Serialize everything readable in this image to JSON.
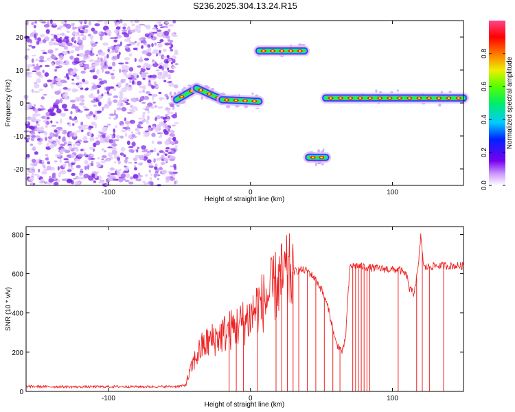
{
  "chart_data": [
    {
      "type": "heatmap",
      "title": "S236.2025.304.13.24.R15",
      "xlabel": "Height of straight line (km)",
      "ylabel": "Frequency (Hz)",
      "xlim": [
        -158,
        150
      ],
      "ylim": [
        -25,
        25
      ],
      "xticks": [
        -100,
        0,
        100
      ],
      "xtick_labels": [
        "-100",
        "0",
        "100"
      ],
      "yticks": [
        -20,
        -10,
        0,
        10,
        20
      ],
      "ytick_labels": [
        "-20",
        "-10",
        "0",
        "10",
        "20"
      ],
      "noise_region_x": [
        -158,
        -52
      ],
      "tracks": [
        {
          "x_start": -52,
          "x_end": -38,
          "f_start": 1,
          "f_end": 4.5
        },
        {
          "x_start": -38,
          "x_end": -20,
          "f_start": 4.5,
          "f_end": 1
        },
        {
          "x_start": -20,
          "x_end": 6,
          "f_start": 1,
          "f_end": 0.5
        },
        {
          "x_start": 6,
          "x_end": 38,
          "f_start": 15.8,
          "f_end": 15.8
        },
        {
          "x_start": 41,
          "x_end": 53,
          "f_start": -16.5,
          "f_end": -16.5
        },
        {
          "x_start": 53,
          "x_end": 150,
          "f_start": 1.5,
          "f_end": 1.5
        }
      ],
      "colorbar": {
        "label": "Normalized spectral amplitude",
        "ticks": [
          0.0,
          0.2,
          0.4,
          0.6,
          0.8
        ],
        "tick_labels": [
          "0.0",
          "0.2",
          "0.4",
          "0.6",
          "0.8"
        ],
        "range": [
          0,
          1
        ]
      }
    },
    {
      "type": "line",
      "xlabel": "Height of straight line (km)",
      "ylabel": "SNR (10 * v/v)",
      "xlim": [
        -158,
        150
      ],
      "ylim": [
        0,
        840
      ],
      "xticks": [
        -100,
        0,
        100
      ],
      "xtick_labels": [
        "-100",
        "0",
        "100"
      ],
      "yticks": [
        0,
        200,
        400,
        600,
        800
      ],
      "ytick_labels": [
        "0",
        "200",
        "400",
        "600",
        "800"
      ],
      "color": "#ee2222",
      "series": [
        {
          "name": "SNR",
          "x": [
            -158,
            -140,
            -120,
            -100,
            -80,
            -60,
            -52,
            -46,
            -40,
            -35,
            -30,
            -25,
            -20,
            -15,
            -10,
            -5,
            0,
            5,
            10,
            15,
            20,
            25,
            30,
            35,
            40,
            45,
            50,
            55,
            60,
            65,
            67,
            70,
            75,
            80,
            85,
            90,
            95,
            100,
            105,
            110,
            112,
            115,
            118,
            120,
            122,
            125,
            130,
            135,
            140,
            145,
            150
          ],
          "values": [
            25,
            24,
            23,
            24,
            24,
            24,
            25,
            30,
            150,
            220,
            250,
            270,
            290,
            310,
            330,
            350,
            380,
            440,
            460,
            510,
            560,
            590,
            610,
            620,
            615,
            580,
            520,
            420,
            250,
            200,
            280,
            640,
            640,
            635,
            630,
            625,
            625,
            620,
            620,
            590,
            520,
            500,
            620,
            800,
            630,
            635,
            640,
            640,
            640,
            640,
            640
          ]
        }
      ],
      "dropouts_x": [
        -15,
        -10,
        -5,
        5,
        18,
        22,
        26,
        30,
        34,
        40,
        46,
        52,
        58,
        63,
        72,
        74,
        76,
        78,
        80,
        82,
        84,
        104,
        117,
        121,
        126,
        136
      ]
    }
  ]
}
